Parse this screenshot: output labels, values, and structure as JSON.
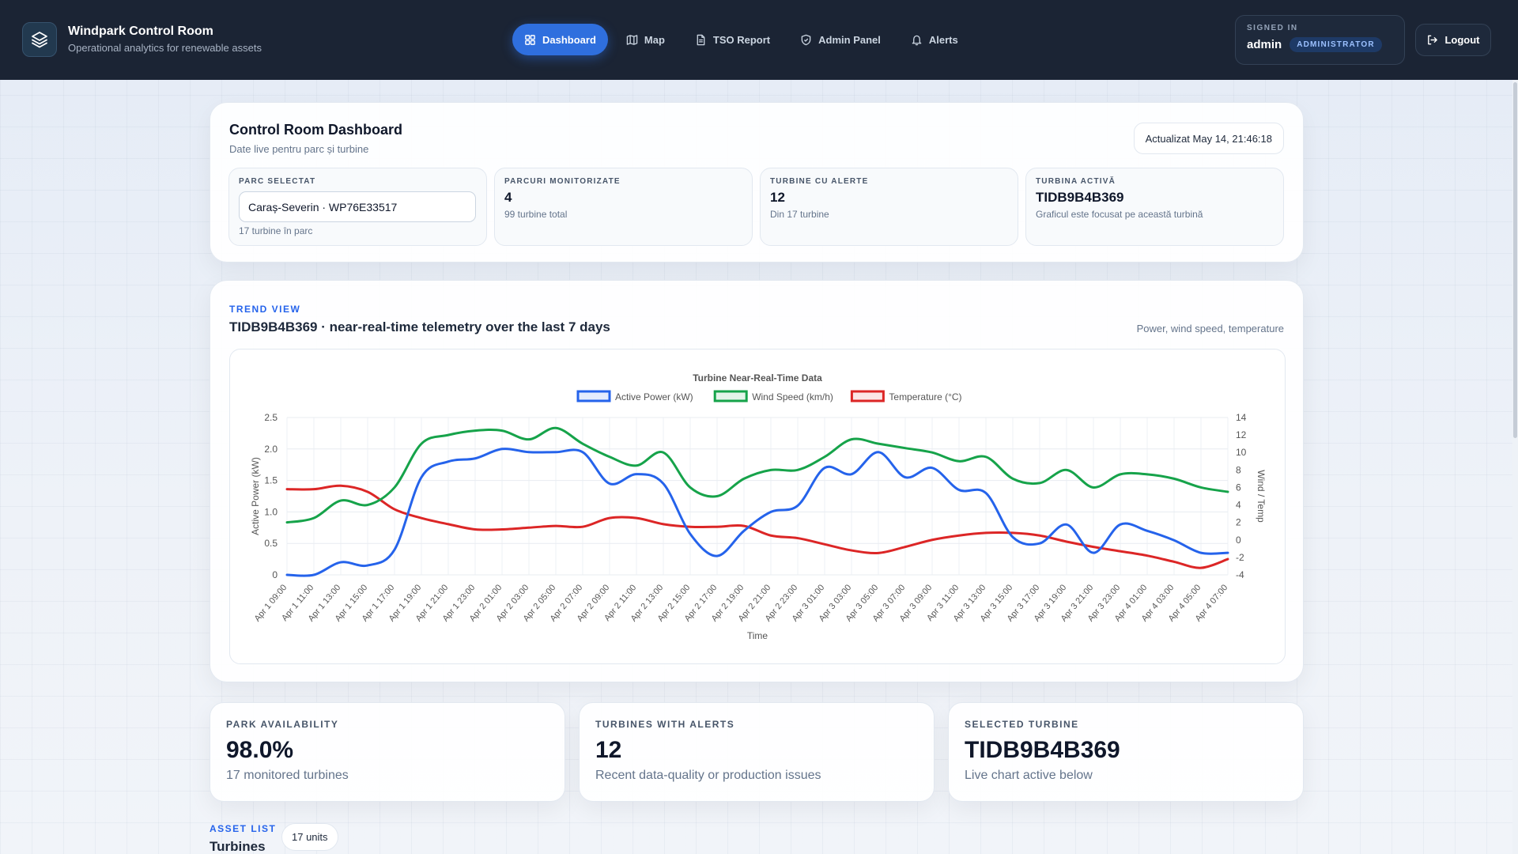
{
  "app": {
    "title": "Windpark Control Room",
    "subtitle": "Operational analytics for renewable assets"
  },
  "nav": [
    {
      "label": "Dashboard",
      "icon": "grid-icon",
      "active": true
    },
    {
      "label": "Map",
      "icon": "map-icon",
      "active": false
    },
    {
      "label": "TSO Report",
      "icon": "document-icon",
      "active": false
    },
    {
      "label": "Admin Panel",
      "icon": "shield-icon",
      "active": false
    },
    {
      "label": "Alerts",
      "icon": "bell-icon",
      "active": false
    }
  ],
  "user": {
    "signed_in_label": "SIGNED IN",
    "name": "admin",
    "role": "ADMINISTRATOR",
    "logout_label": "Logout"
  },
  "dashboard": {
    "title": "Control Room Dashboard",
    "subtitle": "Date live pentru parc și turbine",
    "updated": "Actualizat May 14, 21:46:18",
    "park": {
      "label": "PARC SELECTAT",
      "selected": "Caraș-Severin · WP76E33517",
      "sub": "17 turbine în parc"
    },
    "tiles": [
      {
        "label": "PARCURI MONITORIZATE",
        "value": "4",
        "sub": "99 turbine total"
      },
      {
        "label": "TURBINE CU ALERTE",
        "value": "12",
        "sub": "Din 17 turbine"
      },
      {
        "label": "TURBINA ACTIVĂ",
        "value": "TIDB9B4B369",
        "sub": "Graficul este focusat pe această turbină"
      }
    ]
  },
  "trend": {
    "kicker": "TREND VIEW",
    "title": "TIDB9B4B369 · near-real-time telemetry over the last 7 days",
    "right": "Power, wind speed, temperature"
  },
  "chart_data": {
    "type": "line",
    "title": "Turbine Near-Real-Time Data",
    "xlabel": "Time",
    "ylabel_left": "Active Power (kW)",
    "ylabel_right": "Wind / Temp",
    "ylim_left": [
      0,
      2.5
    ],
    "ylim_right": [
      -4,
      14
    ],
    "yticks_left": [
      "0",
      "0.5",
      "1.0",
      "1.5",
      "2.0",
      "2.5"
    ],
    "yticks_right": [
      "-4",
      "-2",
      "0",
      "2",
      "4",
      "6",
      "8",
      "10",
      "12",
      "14"
    ],
    "grid": true,
    "legend_position": "top",
    "x": [
      "Apr 1 09:00",
      "Apr 1 11:00",
      "Apr 1 13:00",
      "Apr 1 15:00",
      "Apr 1 17:00",
      "Apr 1 19:00",
      "Apr 1 21:00",
      "Apr 1 23:00",
      "Apr 2 01:00",
      "Apr 2 03:00",
      "Apr 2 05:00",
      "Apr 2 07:00",
      "Apr 2 09:00",
      "Apr 2 11:00",
      "Apr 2 13:00",
      "Apr 2 15:00",
      "Apr 2 17:00",
      "Apr 2 19:00",
      "Apr 2 21:00",
      "Apr 2 23:00",
      "Apr 3 01:00",
      "Apr 3 03:00",
      "Apr 3 05:00",
      "Apr 3 07:00",
      "Apr 3 09:00",
      "Apr 3 11:00",
      "Apr 3 13:00",
      "Apr 3 15:00",
      "Apr 3 17:00",
      "Apr 3 19:00",
      "Apr 3 21:00",
      "Apr 3 23:00",
      "Apr 4 01:00",
      "Apr 4 03:00",
      "Apr 4 05:00",
      "Apr 4 07:00"
    ],
    "series": [
      {
        "name": "Active Power (kW)",
        "axis": "left",
        "color": "#2563eb",
        "values": [
          0.0,
          0.0,
          0.2,
          0.15,
          0.4,
          1.55,
          1.8,
          1.85,
          2.0,
          1.95,
          1.95,
          1.95,
          1.45,
          1.6,
          1.45,
          0.65,
          0.3,
          0.7,
          1.0,
          1.1,
          1.7,
          1.6,
          1.95,
          1.55,
          1.7,
          1.35,
          1.3,
          0.6,
          0.5,
          0.8,
          0.35,
          0.8,
          0.7,
          0.55,
          0.35,
          0.35
        ]
      },
      {
        "name": "Wind Speed (km/h)",
        "axis": "right",
        "color": "#16a34a",
        "values": [
          2.0,
          2.5,
          4.5,
          4.0,
          6.0,
          11.0,
          12.0,
          12.5,
          12.5,
          11.5,
          12.8,
          11.0,
          9.5,
          8.5,
          10.0,
          6.0,
          5.0,
          7.0,
          8.0,
          8.0,
          9.5,
          11.5,
          11.0,
          10.5,
          10.0,
          9.0,
          9.5,
          7.0,
          6.5,
          8.0,
          6.0,
          7.5,
          7.5,
          7.0,
          6.0,
          5.5
        ]
      },
      {
        "name": "Temperature (°C)",
        "axis": "right",
        "color": "#dc2626",
        "values": [
          5.8,
          5.8,
          6.2,
          5.5,
          3.5,
          2.5,
          1.8,
          1.2,
          1.2,
          1.4,
          1.6,
          1.5,
          2.5,
          2.5,
          1.8,
          1.5,
          1.5,
          1.6,
          0.5,
          0.2,
          -0.5,
          -1.2,
          -1.5,
          -0.8,
          0.0,
          0.5,
          0.8,
          0.8,
          0.5,
          -0.2,
          -0.8,
          -1.3,
          -1.8,
          -2.5,
          -3.2,
          -2.2
        ]
      }
    ]
  },
  "kpis": [
    {
      "label": "PARK AVAILABILITY",
      "value": "98.0%",
      "sub": "17 monitored turbines"
    },
    {
      "label": "TURBINES WITH ALERTS",
      "value": "12",
      "sub": "Recent data-quality or production issues"
    },
    {
      "label": "SELECTED TURBINE",
      "value": "TIDB9B4B369",
      "sub": "Live chart active below"
    }
  ],
  "assets": {
    "kicker": "ASSET LIST",
    "title": "Turbines",
    "count": "17 units"
  }
}
